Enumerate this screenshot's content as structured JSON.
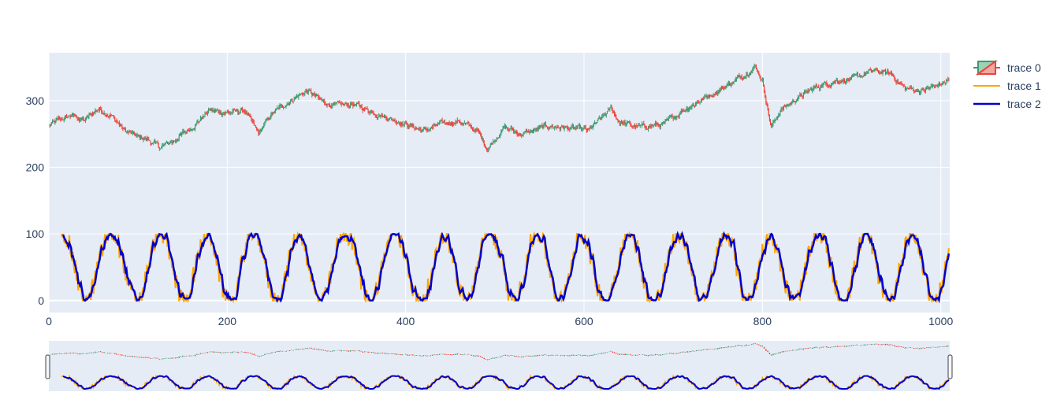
{
  "chart_data": {
    "type": "line",
    "title": "",
    "xlabel": "",
    "ylabel": "",
    "xlim": [
      0,
      1010
    ],
    "ylim": [
      -18,
      372
    ],
    "x_ticks": [
      0,
      200,
      400,
      600,
      800,
      1000
    ],
    "y_ticks": [
      0,
      100,
      200,
      300
    ],
    "grid": true,
    "legend_position": "top-right",
    "rangeslider": true,
    "colors": {
      "increasing": "#3d9970",
      "decreasing": "#ef4136",
      "trace1": "#ffa500",
      "trace2": "#0000cd",
      "plot_bg": "#e5ecf6",
      "grid": "#ffffff"
    },
    "series": [
      {
        "name": "trace 0",
        "kind": "candlestick",
        "close_keypoints": [
          [
            0,
            262
          ],
          [
            10,
            270
          ],
          [
            25,
            278
          ],
          [
            40,
            270
          ],
          [
            55,
            288
          ],
          [
            70,
            278
          ],
          [
            85,
            255
          ],
          [
            100,
            245
          ],
          [
            110,
            242
          ],
          [
            125,
            230
          ],
          [
            140,
            240
          ],
          [
            160,
            260
          ],
          [
            180,
            285
          ],
          [
            200,
            282
          ],
          [
            220,
            285
          ],
          [
            235,
            250
          ],
          [
            250,
            280
          ],
          [
            270,
            300
          ],
          [
            290,
            315
          ],
          [
            305,
            300
          ],
          [
            320,
            292
          ],
          [
            340,
            295
          ],
          [
            360,
            285
          ],
          [
            380,
            275
          ],
          [
            395,
            268
          ],
          [
            410,
            260
          ],
          [
            420,
            255
          ],
          [
            440,
            265
          ],
          [
            460,
            270
          ],
          [
            480,
            255
          ],
          [
            492,
            228
          ],
          [
            510,
            260
          ],
          [
            530,
            250
          ],
          [
            560,
            262
          ],
          [
            590,
            258
          ],
          [
            605,
            255
          ],
          [
            625,
            280
          ],
          [
            630,
            288
          ],
          [
            640,
            268
          ],
          [
            660,
            260
          ],
          [
            690,
            265
          ],
          [
            710,
            285
          ],
          [
            730,
            300
          ],
          [
            750,
            315
          ],
          [
            775,
            335
          ],
          [
            792,
            352
          ],
          [
            800,
            330
          ],
          [
            810,
            260
          ],
          [
            820,
            285
          ],
          [
            840,
            305
          ],
          [
            860,
            320
          ],
          [
            880,
            330
          ],
          [
            900,
            332
          ],
          [
            925,
            345
          ],
          [
            945,
            340
          ],
          [
            960,
            318
          ],
          [
            980,
            315
          ],
          [
            1000,
            325
          ],
          [
            1010,
            330
          ]
        ]
      },
      {
        "name": "trace 1",
        "kind": "line",
        "min": 0,
        "max": 100
      },
      {
        "name": "trace 2",
        "kind": "line",
        "min": 0,
        "max": 100
      }
    ]
  }
}
